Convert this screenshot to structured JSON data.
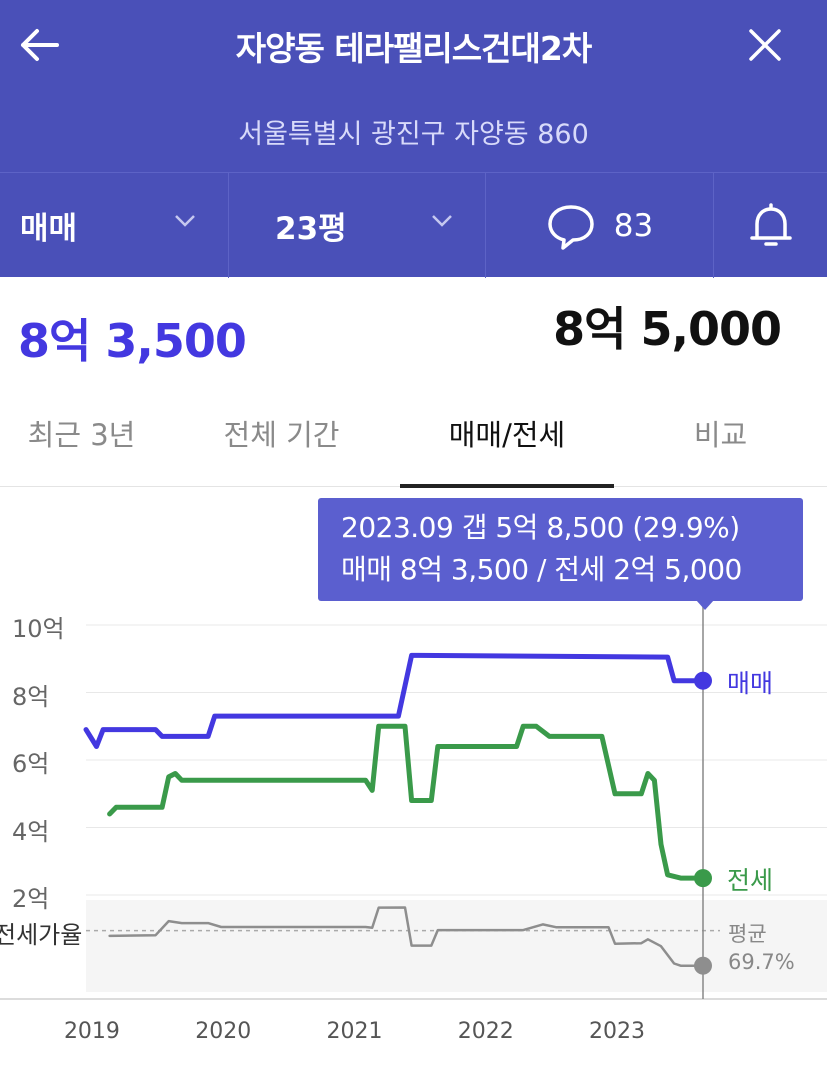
{
  "header": {
    "title": "자양동 테라팰리스건대2차",
    "address": "서울특별시 광진구 자양동 860"
  },
  "controls": {
    "trade_type": "매매",
    "size": "23평",
    "comment_count": "83"
  },
  "price": {
    "main": "8억 3,500",
    "secondary": "8억 5,000"
  },
  "tabs": [
    {
      "label": "최근 3년",
      "active": false
    },
    {
      "label": "전체 기간",
      "active": false
    },
    {
      "label": "매매/전세",
      "active": true
    },
    {
      "label": "비교",
      "active": false
    }
  ],
  "tooltip": {
    "line1": "2023.09  갭 5억 8,500 (29.9%)",
    "line2": "매매 8억 3,500 / 전세 2억 5,000"
  },
  "colors": {
    "sale": "#4338e0",
    "jeonse": "#3a9a4a",
    "ratio": "#8e8e8e",
    "header_bg": "#4a50b8"
  },
  "avg_label": {
    "line1": "평균",
    "line2": "69.7%"
  },
  "chart_data": {
    "type": "line",
    "ylim": [
      0,
      11
    ],
    "yticks": [
      "10억",
      "8억",
      "6억",
      "4억",
      "2억"
    ],
    "ytick_values": [
      10,
      8,
      6,
      4,
      2
    ],
    "xticks": [
      "2019",
      "2020",
      "2021",
      "2022",
      "2023"
    ],
    "xtick_values": [
      2019.0,
      2020.0,
      2021.0,
      2022.0,
      2023.0
    ],
    "ratio_label": "전세가율",
    "series": [
      {
        "name": "매매",
        "x": [
          2018.97,
          2019.05,
          2019.1,
          2019.15,
          2019.5,
          2019.55,
          2019.6,
          2019.9,
          2019.95,
          2020.0,
          2021.35,
          2021.45,
          2021.5,
          2023.4,
          2023.45,
          2023.5,
          2023.67
        ],
        "values": [
          6.9,
          6.4,
          6.9,
          6.9,
          6.9,
          6.7,
          6.7,
          6.7,
          7.3,
          7.3,
          7.3,
          9.1,
          9.1,
          9.05,
          8.35,
          8.35,
          8.35
        ]
      },
      {
        "name": "전세",
        "x": [
          2019.15,
          2019.2,
          2019.25,
          2019.55,
          2019.6,
          2019.65,
          2019.7,
          2021.1,
          2021.15,
          2021.2,
          2021.4,
          2021.45,
          2021.5,
          2021.6,
          2021.65,
          2021.7,
          2022.25,
          2022.3,
          2022.4,
          2022.5,
          2022.55,
          2022.9,
          2023.0,
          2023.05,
          2023.2,
          2023.25,
          2023.3,
          2023.35,
          2023.4,
          2023.5,
          2023.67
        ],
        "values": [
          4.4,
          4.6,
          4.6,
          4.6,
          5.5,
          5.6,
          5.4,
          5.4,
          5.1,
          7.0,
          7.0,
          4.8,
          4.8,
          4.8,
          6.4,
          6.4,
          6.4,
          7.0,
          7.0,
          6.7,
          6.7,
          6.7,
          5.0,
          5.0,
          5.0,
          5.6,
          5.4,
          3.5,
          2.6,
          2.5,
          2.5
        ]
      },
      {
        "name": "전세가율",
        "x": [
          2019.15,
          2019.5,
          2019.6,
          2019.7,
          2019.9,
          2020.0,
          2021.1,
          2021.15,
          2021.2,
          2021.4,
          2021.45,
          2021.6,
          2021.65,
          2022.3,
          2022.45,
          2022.55,
          2022.95,
          2023.0,
          2023.2,
          2023.25,
          2023.35,
          2023.45,
          2023.5,
          2023.67
        ],
        "values": [
          63.8,
          64.5,
          80.6,
          78.3,
          78.3,
          73.9,
          73.9,
          72.9,
          95.9,
          96.0,
          52.7,
          52.7,
          70.3,
          70.3,
          76.8,
          73.6,
          73.6,
          54.9,
          55.4,
          59.9,
          52.1,
          32.4,
          29.9,
          29.9
        ]
      }
    ],
    "average_ratio": 69.7,
    "ratio_band": [
      0,
      100
    ],
    "legend": "right-end labels"
  }
}
